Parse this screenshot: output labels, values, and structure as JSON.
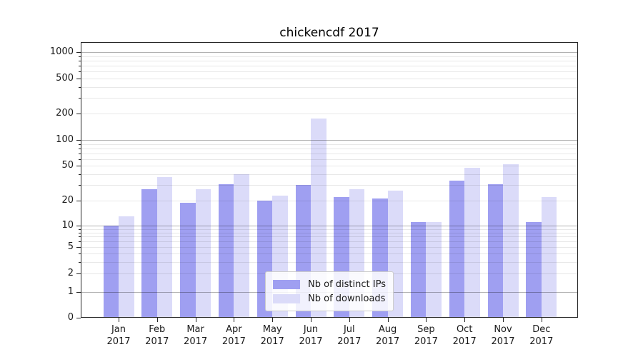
{
  "chart_data": {
    "type": "bar",
    "title": "chickencdf 2017",
    "categories": [
      "Jan",
      "Feb",
      "Mar",
      "Apr",
      "May",
      "Jun",
      "Jul",
      "Aug",
      "Sep",
      "Oct",
      "Nov",
      "Dec"
    ],
    "category_year": "2017",
    "series": [
      {
        "name": "Nb of distinct IPs",
        "color": "#9f9ff1",
        "values": [
          10,
          27,
          19,
          31,
          20,
          30,
          22,
          21,
          11,
          34,
          31,
          11
        ]
      },
      {
        "name": "Nb of downloads",
        "color": "#dbdbf9",
        "values": [
          13,
          37,
          27,
          40,
          23,
          175,
          27,
          26,
          11,
          47,
          52,
          22
        ]
      }
    ],
    "yscale": "log-with-zero",
    "ytick_values": [
      0,
      1,
      2,
      5,
      10,
      20,
      50,
      100,
      200,
      500,
      1000
    ],
    "ytick_labels": [
      "0",
      "1",
      "2",
      "5",
      "10",
      "20",
      "50",
      "100",
      "200",
      "500",
      "1000"
    ],
    "ylim": [
      0,
      1400
    ],
    "grid": true,
    "legend_position": "lower center"
  }
}
